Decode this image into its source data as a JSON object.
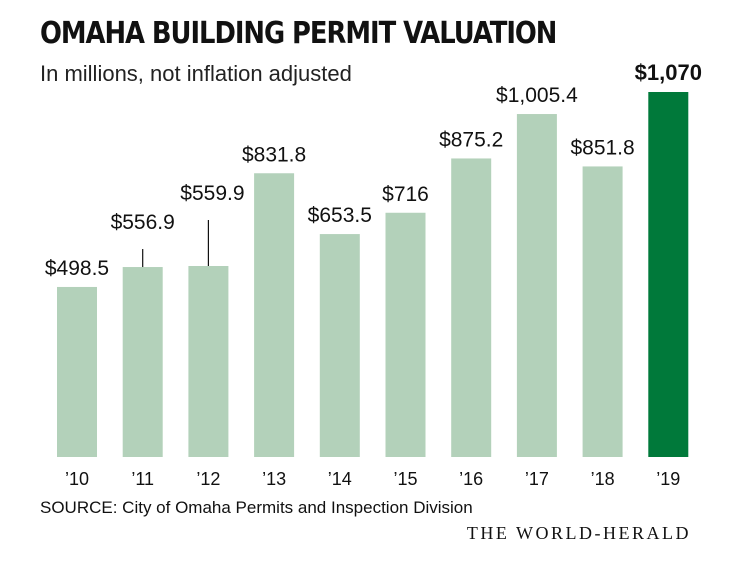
{
  "title": "OMAHA BUILDING PERMIT VALUATION",
  "subtitle": "In millions, not inflation adjusted",
  "source": "SOURCE: City of Omaha Permits and Inspection Division",
  "brand": "THE WORLD-HERALD",
  "colors": {
    "bar": "#b3d1ba",
    "highlight": "#00793a",
    "text": "#111111",
    "leader": "#111111"
  },
  "chart_data": {
    "type": "bar",
    "title": "OMAHA BUILDING PERMIT VALUATION",
    "subtitle": "In millions, not inflation adjusted",
    "xlabel": "",
    "ylabel": "",
    "categories": [
      "’10",
      "’11",
      "’12",
      "’13",
      "’14",
      "’15",
      "’16",
      "’17",
      "’18",
      "’19"
    ],
    "values": [
      498.5,
      556.9,
      559.9,
      831.8,
      653.5,
      716,
      875.2,
      1005.4,
      851.8,
      1070
    ],
    "labels": [
      "$498.5",
      "$556.9",
      "$559.9",
      "$831.8",
      "$653.5",
      "$716",
      "$875.2",
      "$1,005.4",
      "$851.8",
      "$1,070"
    ],
    "highlight_index": 9,
    "ylim": [
      0,
      1070
    ],
    "grid": false,
    "legend": "none"
  }
}
